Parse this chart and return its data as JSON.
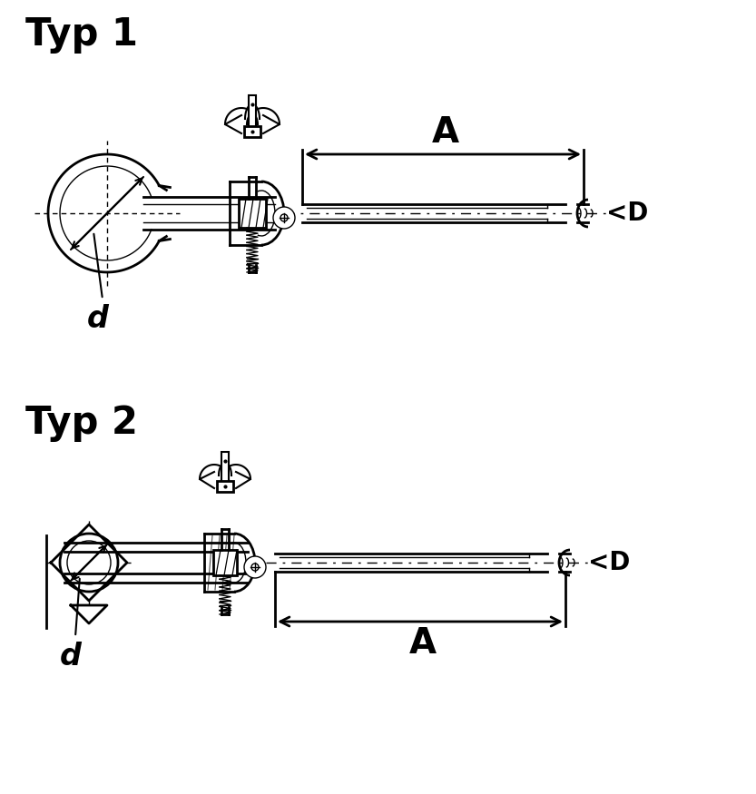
{
  "bg_color": "#ffffff",
  "line_color": "#000000",
  "title1": "Typ 1",
  "title2": "Typ 2",
  "label_d": "d",
  "label_D": "<D",
  "label_A": "A",
  "title_fontsize": 30,
  "label_fontsize_d": 22,
  "label_fontsize_D": 20,
  "label_fontsize_A": 28,
  "figsize": [
    8.33,
    8.75
  ],
  "dpi": 100
}
